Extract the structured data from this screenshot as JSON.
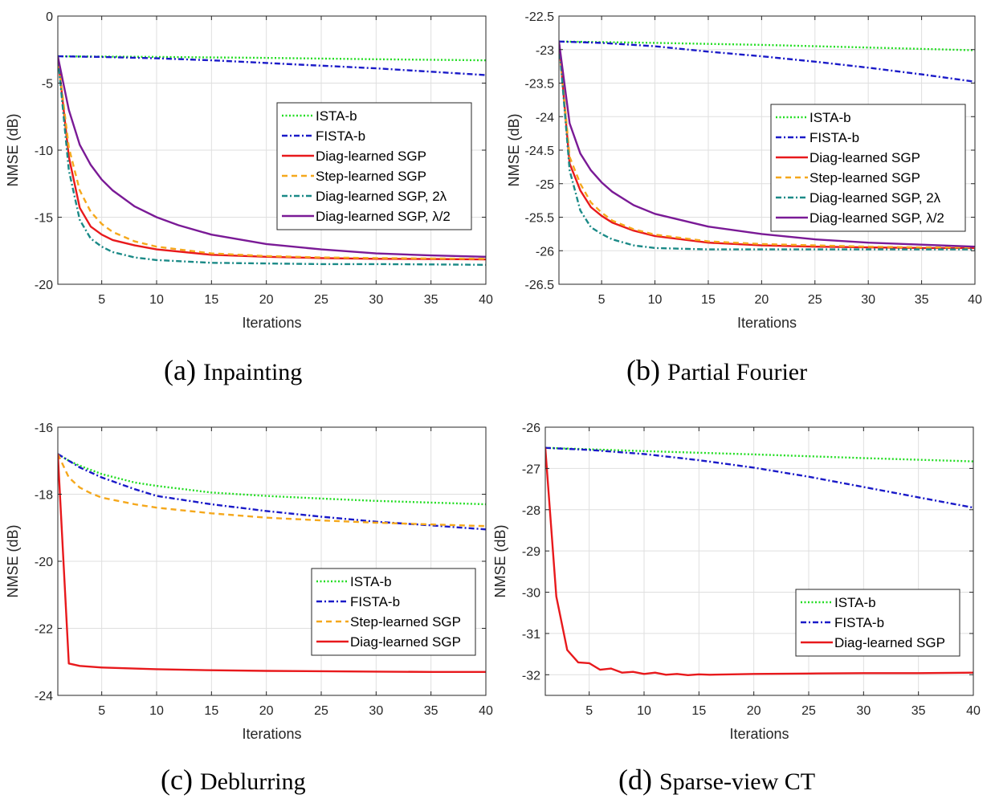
{
  "colors": {
    "ista": "#22dd22",
    "fista": "#1a1ac8",
    "diag": "#e8191c",
    "step": "#f5a81c",
    "diag2": "#1b8a87",
    "diaghalf": "#7a1a96"
  },
  "captions": [
    {
      "letter": "(a)",
      "name": "Inpainting"
    },
    {
      "letter": "(b)",
      "name": "Partial Fourier"
    },
    {
      "letter": "(c)",
      "name": "Deblurring"
    },
    {
      "letter": "(d)",
      "name": "Sparse-view CT"
    }
  ],
  "chart_data": [
    {
      "type": "line",
      "title": "(a) Inpainting",
      "xlabel": "Iterations",
      "ylabel": "NMSE (dB)",
      "xlim": [
        1,
        40
      ],
      "ylim": [
        -20,
        0
      ],
      "xticks": [
        5,
        10,
        15,
        20,
        25,
        30,
        35,
        40
      ],
      "yticks": [
        0,
        -5,
        -10,
        -15,
        -20
      ],
      "legend_position": "center-right",
      "series": [
        {
          "name": "ISTA-b",
          "color_key": "ista",
          "dash": "dot",
          "x": [
            1,
            10,
            20,
            30,
            40
          ],
          "y": [
            -3.0,
            -3.05,
            -3.12,
            -3.22,
            -3.3
          ]
        },
        {
          "name": "FISTA-b",
          "color_key": "fista",
          "dash": "dashdot",
          "x": [
            1,
            5,
            10,
            15,
            20,
            25,
            30,
            35,
            40
          ],
          "y": [
            -3.0,
            -3.05,
            -3.15,
            -3.3,
            -3.5,
            -3.7,
            -3.9,
            -4.15,
            -4.4
          ]
        },
        {
          "name": "Diag-learned SGP",
          "color_key": "diag",
          "dash": "solid",
          "x": [
            1,
            2,
            3,
            4,
            5,
            6,
            8,
            10,
            15,
            20,
            25,
            30,
            35,
            40
          ],
          "y": [
            -3.0,
            -10.5,
            -14.3,
            -15.7,
            -16.3,
            -16.7,
            -17.1,
            -17.4,
            -17.8,
            -17.95,
            -18.05,
            -18.1,
            -18.12,
            -18.15
          ]
        },
        {
          "name": "Step-learned SGP",
          "color_key": "step",
          "dash": "dash",
          "x": [
            1,
            2,
            3,
            4,
            5,
            6,
            8,
            10,
            15,
            20,
            25,
            30,
            35,
            40
          ],
          "y": [
            -3.0,
            -9.8,
            -13.0,
            -14.6,
            -15.5,
            -16.1,
            -16.8,
            -17.2,
            -17.7,
            -17.9,
            -18.0,
            -18.05,
            -18.08,
            -18.1
          ]
        },
        {
          "name": "Diag-learned SGP, 2λ",
          "color_key": "diag2",
          "dash": "dashdot",
          "x": [
            1,
            2,
            3,
            4,
            5,
            6,
            8,
            10,
            15,
            20,
            25,
            30,
            35,
            40
          ],
          "y": [
            -3.0,
            -11.5,
            -15.2,
            -16.6,
            -17.2,
            -17.6,
            -18.0,
            -18.2,
            -18.4,
            -18.45,
            -18.5,
            -18.5,
            -18.52,
            -18.55
          ]
        },
        {
          "name": "Diag-learned SGP, λ/2",
          "color_key": "diaghalf",
          "dash": "solid",
          "x": [
            1,
            2,
            3,
            4,
            5,
            6,
            8,
            10,
            12,
            15,
            20,
            25,
            30,
            35,
            40
          ],
          "y": [
            -3.0,
            -7.0,
            -9.6,
            -11.1,
            -12.2,
            -13.0,
            -14.2,
            -15.0,
            -15.6,
            -16.3,
            -17.0,
            -17.4,
            -17.7,
            -17.85,
            -17.95
          ]
        }
      ]
    },
    {
      "type": "line",
      "title": "(b) Partial Fourier",
      "xlabel": "Iterations",
      "ylabel": "NMSE (dB)",
      "xlim": [
        1,
        40
      ],
      "ylim": [
        -26.5,
        -22.5
      ],
      "xticks": [
        5,
        10,
        15,
        20,
        25,
        30,
        35,
        40
      ],
      "yticks": [
        -22.5,
        -23,
        -23.5,
        -24,
        -24.5,
        -25,
        -25.5,
        -26,
        -26.5
      ],
      "legend_position": "center-right",
      "series": [
        {
          "name": "ISTA-b",
          "color_key": "ista",
          "dash": "dot",
          "x": [
            1,
            10,
            20,
            30,
            40
          ],
          "y": [
            -22.88,
            -22.9,
            -22.93,
            -22.97,
            -23.01
          ]
        },
        {
          "name": "FISTA-b",
          "color_key": "fista",
          "dash": "dashdot",
          "x": [
            1,
            5,
            10,
            15,
            20,
            25,
            30,
            35,
            40
          ],
          "y": [
            -22.88,
            -22.9,
            -22.95,
            -23.03,
            -23.1,
            -23.18,
            -23.27,
            -23.37,
            -23.48
          ]
        },
        {
          "name": "Diag-learned SGP",
          "color_key": "diag",
          "dash": "solid",
          "x": [
            1,
            2,
            3,
            4,
            5,
            6,
            8,
            10,
            15,
            20,
            25,
            30,
            35,
            40
          ],
          "y": [
            -22.88,
            -24.7,
            -25.1,
            -25.35,
            -25.48,
            -25.58,
            -25.7,
            -25.78,
            -25.88,
            -25.92,
            -25.94,
            -25.95,
            -25.96,
            -25.96
          ]
        },
        {
          "name": "Step-learned SGP",
          "color_key": "step",
          "dash": "dash",
          "x": [
            1,
            2,
            3,
            4,
            5,
            6,
            8,
            10,
            15,
            20,
            25,
            30,
            35,
            40
          ],
          "y": [
            -22.88,
            -24.6,
            -25.0,
            -25.28,
            -25.43,
            -25.55,
            -25.68,
            -25.76,
            -25.86,
            -25.9,
            -25.92,
            -25.94,
            -25.95,
            -25.95
          ]
        },
        {
          "name": "Diag-learned SGP, 2λ",
          "color_key": "diag2",
          "dash": "dashdot",
          "x": [
            1,
            2,
            3,
            4,
            5,
            6,
            8,
            10,
            15,
            20,
            25,
            30,
            35,
            40
          ],
          "y": [
            -22.88,
            -24.8,
            -25.4,
            -25.65,
            -25.75,
            -25.83,
            -25.92,
            -25.96,
            -25.98,
            -25.98,
            -25.98,
            -25.98,
            -25.98,
            -25.98
          ]
        },
        {
          "name": "Diag-learned SGP, λ/2",
          "color_key": "diaghalf",
          "dash": "solid",
          "x": [
            1,
            2,
            3,
            4,
            5,
            6,
            8,
            10,
            15,
            20,
            25,
            30,
            35,
            40
          ],
          "y": [
            -22.88,
            -24.1,
            -24.55,
            -24.8,
            -24.98,
            -25.12,
            -25.32,
            -25.45,
            -25.64,
            -25.75,
            -25.83,
            -25.88,
            -25.91,
            -25.94
          ]
        }
      ]
    },
    {
      "type": "line",
      "title": "(c) Deblurring",
      "xlabel": "Iterations",
      "ylabel": "NMSE (dB)",
      "xlim": [
        1,
        40
      ],
      "ylim": [
        -24,
        -16
      ],
      "xticks": [
        5,
        10,
        15,
        20,
        25,
        30,
        35,
        40
      ],
      "yticks": [
        -16,
        -18,
        -20,
        -22,
        -24
      ],
      "legend_position": "center-right",
      "series": [
        {
          "name": "ISTA-b",
          "color_key": "ista",
          "dash": "dot",
          "x": [
            1,
            2,
            3,
            5,
            8,
            10,
            15,
            20,
            25,
            30,
            35,
            40
          ],
          "y": [
            -16.8,
            -17.0,
            -17.15,
            -17.4,
            -17.65,
            -17.75,
            -17.95,
            -18.05,
            -18.13,
            -18.2,
            -18.25,
            -18.3
          ]
        },
        {
          "name": "FISTA-b",
          "color_key": "fista",
          "dash": "dashdot",
          "x": [
            1,
            2,
            3,
            5,
            8,
            10,
            15,
            20,
            25,
            30,
            35,
            40
          ],
          "y": [
            -16.8,
            -17.0,
            -17.2,
            -17.5,
            -17.85,
            -18.05,
            -18.3,
            -18.5,
            -18.67,
            -18.82,
            -18.93,
            -19.05
          ]
        },
        {
          "name": "Step-learned SGP",
          "color_key": "step",
          "dash": "dash",
          "x": [
            1,
            2,
            3,
            4,
            5,
            8,
            10,
            15,
            20,
            25,
            30,
            35,
            40
          ],
          "y": [
            -16.8,
            -17.5,
            -17.8,
            -17.97,
            -18.1,
            -18.3,
            -18.4,
            -18.57,
            -18.7,
            -18.78,
            -18.85,
            -18.9,
            -18.95
          ]
        },
        {
          "name": "Diag-learned SGP",
          "color_key": "diag",
          "dash": "solid",
          "x": [
            1,
            2,
            3,
            5,
            10,
            15,
            20,
            25,
            30,
            35,
            40
          ],
          "y": [
            -16.8,
            -23.05,
            -23.12,
            -23.17,
            -23.22,
            -23.25,
            -23.27,
            -23.28,
            -23.29,
            -23.3,
            -23.3
          ]
        }
      ]
    },
    {
      "type": "line",
      "title": "(d) Sparse-view CT",
      "xlabel": "Iterations",
      "ylabel": "NMSE (dB)",
      "xlim": [
        1,
        40
      ],
      "ylim": [
        -32.5,
        -26
      ],
      "xticks": [
        5,
        10,
        15,
        20,
        25,
        30,
        35,
        40
      ],
      "yticks": [
        -26,
        -27,
        -28,
        -29,
        -30,
        -31,
        -32
      ],
      "legend_position": "center-right",
      "series": [
        {
          "name": "ISTA-b",
          "color_key": "ista",
          "dash": "dot",
          "x": [
            1,
            10,
            20,
            30,
            40
          ],
          "y": [
            -26.5,
            -26.58,
            -26.66,
            -26.75,
            -26.83
          ]
        },
        {
          "name": "FISTA-b",
          "color_key": "fista",
          "dash": "dashdot",
          "x": [
            1,
            5,
            10,
            15,
            20,
            25,
            30,
            35,
            40
          ],
          "y": [
            -26.5,
            -26.55,
            -26.65,
            -26.8,
            -26.98,
            -27.2,
            -27.45,
            -27.7,
            -27.95
          ]
        },
        {
          "name": "Diag-learned SGP",
          "color_key": "diag",
          "dash": "solid",
          "x": [
            1,
            2,
            3,
            4,
            5,
            6,
            7,
            8,
            9,
            10,
            11,
            12,
            13,
            14,
            15,
            16,
            18,
            20,
            25,
            30,
            35,
            40
          ],
          "y": [
            -26.5,
            -30.1,
            -31.4,
            -31.7,
            -31.72,
            -31.88,
            -31.85,
            -31.95,
            -31.93,
            -31.98,
            -31.95,
            -32.0,
            -31.98,
            -32.01,
            -31.99,
            -32.0,
            -31.99,
            -31.98,
            -31.97,
            -31.96,
            -31.96,
            -31.95
          ]
        }
      ]
    }
  ]
}
